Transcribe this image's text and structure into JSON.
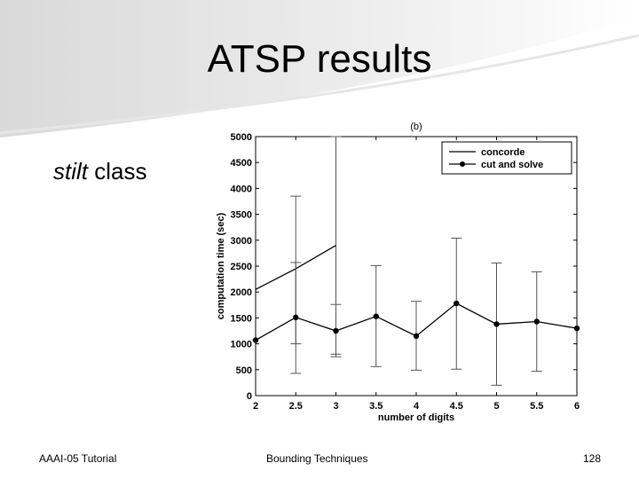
{
  "slide": {
    "title": "ATSP results",
    "subtitle_em": "stilt",
    "subtitle_rest": " class",
    "footer_left": "AAAI-05 Tutorial",
    "footer_center": "Bounding Techniques",
    "footer_right": "128"
  },
  "chart_data": {
    "type": "line",
    "title": "(b)",
    "xlabel": "number of digits",
    "ylabel": "computation time (sec)",
    "xlim": [
      2,
      6
    ],
    "ylim": [
      0,
      5000
    ],
    "xticks": [
      "2",
      "2.5",
      "3",
      "3.5",
      "4",
      "4.5",
      "5",
      "5.5",
      "6"
    ],
    "yticks": [
      "0",
      "500",
      "1000",
      "1500",
      "2000",
      "2500",
      "3000",
      "3500",
      "4000",
      "4500",
      "5000"
    ],
    "grid": false,
    "legend_position": "top-right",
    "series": [
      {
        "name": "concorde",
        "marker": "none",
        "x": [
          2,
          2.5,
          3
        ],
        "y": [
          2050,
          2450,
          2900
        ],
        "err_low": [
          null,
          1000,
          750
        ],
        "err_high": [
          null,
          2570,
          5000
        ]
      },
      {
        "name": "cut and solve",
        "marker": "dot",
        "x": [
          2,
          2.5,
          3,
          3.5,
          4,
          4.5,
          5,
          5.5,
          6
        ],
        "y": [
          1070,
          1510,
          1250,
          1530,
          1150,
          1780,
          1380,
          1430,
          1300
        ],
        "err_low": [
          null,
          430,
          800,
          560,
          490,
          510,
          200,
          470,
          null
        ],
        "err_high": [
          null,
          3850,
          1760,
          2510,
          1820,
          3040,
          2560,
          2390,
          null
        ]
      }
    ]
  }
}
